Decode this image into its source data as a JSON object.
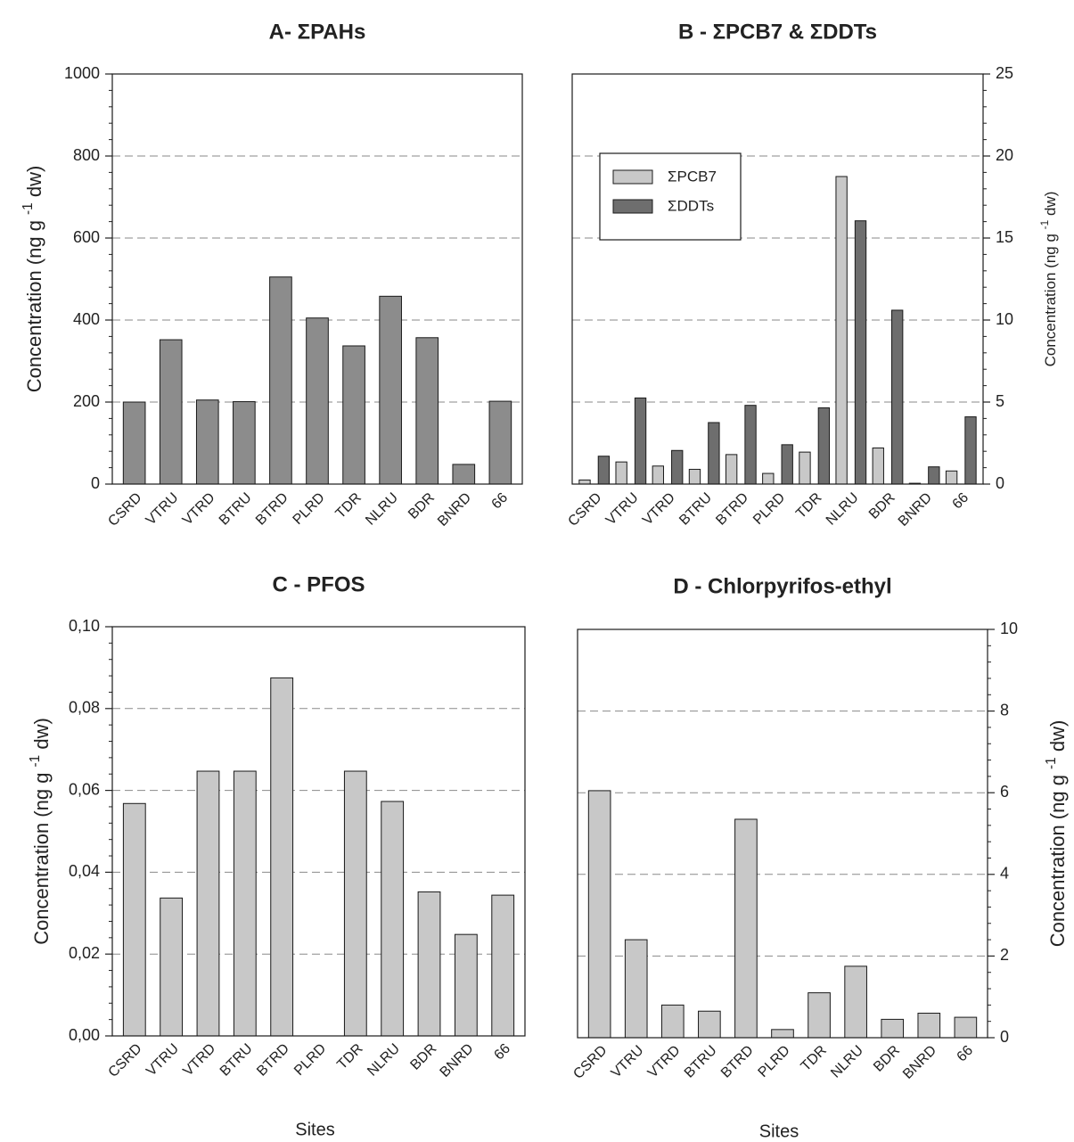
{
  "chart_data": [
    {
      "panel": "A",
      "type": "bar",
      "title": "A- ΣPAHs",
      "xlabel": "",
      "ylabel": "Concentration (ng g-1 dw)",
      "yaxis_side": "left",
      "ylim": [
        0,
        1000
      ],
      "yticks": [
        "0",
        "200",
        "400",
        "600",
        "800",
        "1000"
      ],
      "ytick_values": [
        0,
        200,
        400,
        600,
        800,
        1000
      ],
      "grid": true,
      "categories": [
        "CSRD",
        "VTRU",
        "VTRD",
        "BTRU",
        "BTRD",
        "PLRD",
        "TDR",
        "NLRU",
        "BDR",
        "BNRD",
        "66"
      ],
      "series": [
        {
          "name": "",
          "color": "#8c8c8c",
          "values": [
            200,
            352,
            205,
            201,
            505,
            405,
            337,
            458,
            357,
            48,
            202
          ]
        }
      ]
    },
    {
      "panel": "B",
      "type": "bar",
      "title": "B - ΣPCB7 & ΣDDTs",
      "xlabel": "",
      "ylabel": "Concentration (ng g-1 dw)",
      "yaxis_side": "right",
      "ylim": [
        0,
        25
      ],
      "yticks": [
        "0",
        "5",
        "10",
        "15",
        "20",
        "25"
      ],
      "ytick_values": [
        0,
        5,
        10,
        15,
        20,
        25
      ],
      "grid": true,
      "legend": "upper-left",
      "categories": [
        "CSRD",
        "VTRU",
        "VTRD",
        "BTRU",
        "BTRD",
        "PLRD",
        "TDR",
        "NLRU",
        "BDR",
        "BNRD",
        "66"
      ],
      "series": [
        {
          "name": "ΣPCB7",
          "color": "#c8c8c8",
          "values": [
            0.25,
            1.35,
            1.1,
            0.9,
            1.8,
            0.65,
            1.95,
            18.75,
            2.2,
            0.05,
            0.8
          ]
        },
        {
          "name": "ΣDDTs",
          "color": "#6e6e6e",
          "values": [
            1.7,
            5.25,
            2.05,
            3.75,
            4.8,
            2.4,
            4.65,
            16.05,
            10.6,
            1.05,
            4.1
          ]
        }
      ]
    },
    {
      "panel": "C",
      "type": "bar",
      "title": "C - PFOS",
      "xlabel": "Sites",
      "ylabel": "Concentration (ng g-1 dw)",
      "yaxis_side": "left",
      "ylim": [
        0,
        0.1
      ],
      "yticks": [
        "0,00",
        "0,02",
        "0,04",
        "0,06",
        "0,08",
        "0,10"
      ],
      "ytick_values": [
        0,
        0.02,
        0.04,
        0.06,
        0.08,
        0.1
      ],
      "grid": true,
      "categories": [
        "CSRD",
        "VTRU",
        "VTRD",
        "BTRU",
        "BTRD",
        "PLRD",
        "TDR",
        "NLRU",
        "BDR",
        "BNRD",
        "66"
      ],
      "series": [
        {
          "name": "",
          "color": "#c8c8c8",
          "values": [
            0.0568,
            0.0337,
            0.0647,
            0.0647,
            0.0875,
            0,
            0.0647,
            0.0573,
            0.0352,
            0.0248,
            0.0344
          ]
        }
      ]
    },
    {
      "panel": "D",
      "type": "bar",
      "title": "D - Chlorpyrifos-ethyl",
      "xlabel": "Sites",
      "ylabel": "Concentration (ng g-1 dw)",
      "yaxis_side": "right",
      "ylim": [
        0,
        10
      ],
      "yticks": [
        "0",
        "2",
        "4",
        "6",
        "8",
        "10"
      ],
      "ytick_values": [
        0,
        2,
        4,
        6,
        8,
        10
      ],
      "grid": true,
      "categories": [
        "CSRD",
        "VTRU",
        "VTRD",
        "BTRU",
        "BTRD",
        "PLRD",
        "TDR",
        "NLRU",
        "BDR",
        "BNRD",
        "66"
      ],
      "series": [
        {
          "name": "",
          "color": "#c8c8c8",
          "values": [
            6.05,
            2.4,
            0.8,
            0.65,
            5.35,
            0.2,
            1.1,
            1.75,
            0.45,
            0.6,
            0.5
          ]
        }
      ]
    }
  ]
}
